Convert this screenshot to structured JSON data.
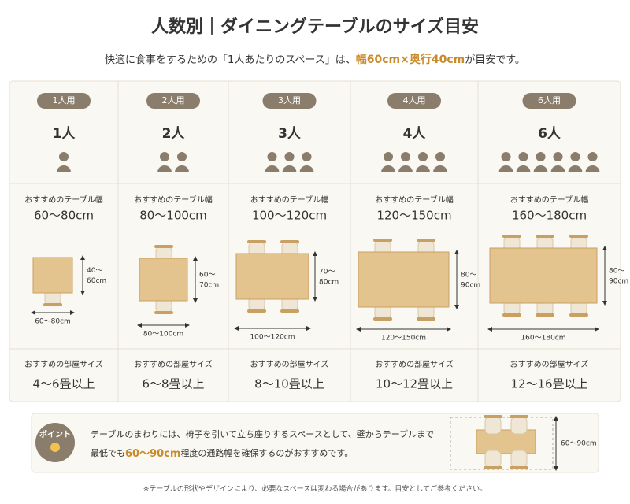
{
  "header": {
    "title": "人数別｜ダイニングテーブルのサイズ目安",
    "subtitle": [
      "快適に食事をするための「1人あたりのスペース」は、",
      "幅60cm×奥行40cm",
      "が目安です。"
    ]
  },
  "columns": [
    {
      "badge": "1人用",
      "count": "1人",
      "persons": 1,
      "table_label": "おすすめのテーブル幅",
      "table_width": "60〜80cm",
      "width_dim": "60〜80cm",
      "depth_dim": [
        "40〜",
        "60cm"
      ],
      "room_label": "おすすめの部屋サイズ",
      "room_size": "4〜6畳以上"
    },
    {
      "badge": "2人用",
      "count": "2人",
      "persons": 2,
      "table_label": "おすすめのテーブル幅",
      "table_width": "80〜100cm",
      "width_dim": "80〜100cm",
      "depth_dim": [
        "60〜",
        "70cm"
      ],
      "room_label": "おすすめの部屋サイズ",
      "room_size": "6〜8畳以上"
    },
    {
      "badge": "3人用",
      "count": "3人",
      "persons": 3,
      "table_label": "おすすめのテーブル幅",
      "table_width": "100〜120cm",
      "width_dim": "100〜120cm",
      "depth_dim": [
        "70〜",
        "80cm"
      ],
      "room_label": "おすすめの部屋サイズ",
      "room_size": "8〜10畳以上"
    },
    {
      "badge": "4人用",
      "count": "4人",
      "persons": 4,
      "table_label": "おすすめのテーブル幅",
      "table_width": "120〜150cm",
      "width_dim": "120〜150cm",
      "depth_dim": [
        "80〜",
        "90cm"
      ],
      "room_label": "おすすめの部屋サイズ",
      "room_size": "10〜12畳以上"
    },
    {
      "badge": "6人用",
      "count": "6人",
      "persons": 6,
      "table_label": "おすすめのテーブル幅",
      "table_width": "160〜180cm",
      "width_dim": "160〜180cm",
      "depth_dim": [
        "80〜",
        "90cm"
      ],
      "room_label": "おすすめの部屋サイズ",
      "room_size": "12〜16畳以上"
    }
  ],
  "point": {
    "label": "ポイント",
    "line1": "テーブルのまわりには、椅子を引いて立ち座りするスペースとして、壁からテーブルまで",
    "line2": [
      "最低でも",
      "60〜90cm",
      "程度の通路幅を確保するのがおすすめです。"
    ],
    "diagram_label": "60〜90cm"
  },
  "footer": "※テーブルの形状やデザインにより、必要なスペースは変わる場合があります。目安としてご参考ください。"
}
